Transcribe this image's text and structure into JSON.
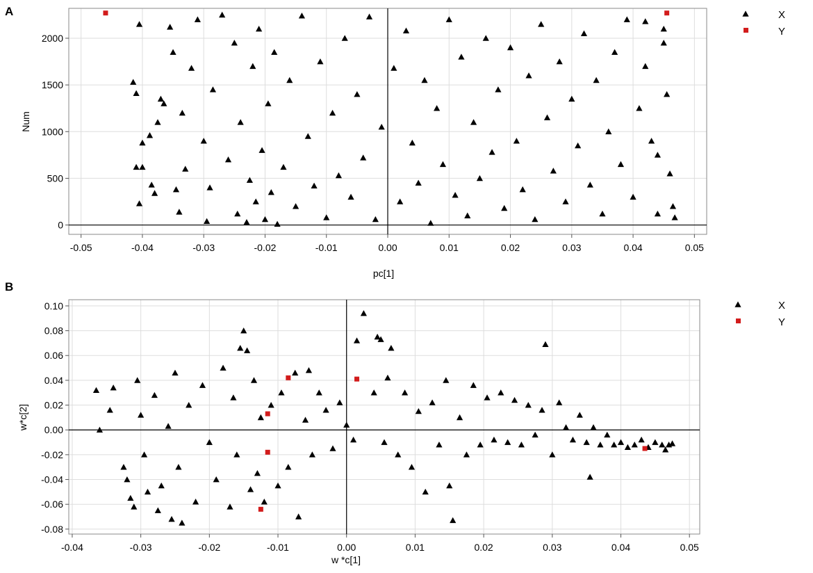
{
  "chart_data": [
    {
      "panel_letter": "A",
      "type": "scatter",
      "xlabel": "pc[1]",
      "ylabel": "Num",
      "xlim": [
        -0.052,
        0.052
      ],
      "ylim": [
        -100,
        2320
      ],
      "xticks": [
        -0.05,
        -0.04,
        -0.03,
        -0.02,
        -0.01,
        0.0,
        0.01,
        0.02,
        0.03,
        0.04,
        0.05
      ],
      "xtick_labels": [
        "-0.05",
        "-0.04",
        "-0.03",
        "-0.02",
        "-0.01",
        "0.00",
        "0.01",
        "0.02",
        "0.03",
        "0.04",
        "0.05"
      ],
      "yticks": [
        0,
        500,
        1000,
        1500,
        2000
      ],
      "ytick_labels": [
        "0",
        "500",
        "1000",
        "1500",
        "2000"
      ],
      "grid": true,
      "legend_position": "right",
      "series": [
        {
          "name": "X",
          "marker": "triangle",
          "color": "#000000",
          "points": [
            [
              -0.0415,
              1530
            ],
            [
              -0.041,
              1410
            ],
            [
              -0.0405,
              2150
            ],
            [
              -0.041,
              620
            ],
            [
              -0.04,
              620
            ],
            [
              -0.0405,
              230
            ],
            [
              -0.04,
              880
            ],
            [
              -0.0388,
              960
            ],
            [
              -0.0385,
              430
            ],
            [
              -0.038,
              340
            ],
            [
              -0.037,
              1350
            ],
            [
              -0.0365,
              1300
            ],
            [
              -0.0375,
              1100
            ],
            [
              -0.0355,
              2120
            ],
            [
              -0.035,
              1850
            ],
            [
              -0.0345,
              380
            ],
            [
              -0.034,
              140
            ],
            [
              -0.0335,
              1200
            ],
            [
              -0.033,
              600
            ],
            [
              -0.032,
              1680
            ],
            [
              -0.031,
              2200
            ],
            [
              -0.03,
              900
            ],
            [
              -0.0295,
              40
            ],
            [
              -0.029,
              400
            ],
            [
              -0.0285,
              1450
            ],
            [
              -0.027,
              2250
            ],
            [
              -0.026,
              700
            ],
            [
              -0.025,
              1950
            ],
            [
              -0.0245,
              120
            ],
            [
              -0.024,
              1100
            ],
            [
              -0.023,
              30
            ],
            [
              -0.0225,
              480
            ],
            [
              -0.022,
              1700
            ],
            [
              -0.0215,
              250
            ],
            [
              -0.021,
              2100
            ],
            [
              -0.0205,
              800
            ],
            [
              -0.02,
              60
            ],
            [
              -0.0195,
              1300
            ],
            [
              -0.019,
              350
            ],
            [
              -0.0185,
              1850
            ],
            [
              -0.018,
              10
            ],
            [
              -0.017,
              620
            ],
            [
              -0.016,
              1550
            ],
            [
              -0.015,
              200
            ],
            [
              -0.014,
              2240
            ],
            [
              -0.013,
              950
            ],
            [
              -0.012,
              420
            ],
            [
              -0.011,
              1750
            ],
            [
              -0.01,
              80
            ],
            [
              -0.009,
              1200
            ],
            [
              -0.008,
              530
            ],
            [
              -0.007,
              2000
            ],
            [
              -0.006,
              300
            ],
            [
              -0.005,
              1400
            ],
            [
              -0.004,
              720
            ],
            [
              -0.003,
              2230
            ],
            [
              -0.002,
              60
            ],
            [
              -0.001,
              1050
            ],
            [
              0.001,
              1680
            ],
            [
              0.002,
              250
            ],
            [
              0.003,
              2080
            ],
            [
              0.004,
              880
            ],
            [
              0.005,
              450
            ],
            [
              0.006,
              1550
            ],
            [
              0.007,
              20
            ],
            [
              0.008,
              1250
            ],
            [
              0.009,
              650
            ],
            [
              0.01,
              2200
            ],
            [
              0.011,
              320
            ],
            [
              0.012,
              1800
            ],
            [
              0.013,
              100
            ],
            [
              0.014,
              1100
            ],
            [
              0.015,
              500
            ],
            [
              0.016,
              2000
            ],
            [
              0.017,
              780
            ],
            [
              0.018,
              1450
            ],
            [
              0.019,
              180
            ],
            [
              0.02,
              1900
            ],
            [
              0.021,
              900
            ],
            [
              0.022,
              380
            ],
            [
              0.023,
              1600
            ],
            [
              0.024,
              60
            ],
            [
              0.025,
              2150
            ],
            [
              0.026,
              1150
            ],
            [
              0.027,
              580
            ],
            [
              0.028,
              1750
            ],
            [
              0.029,
              250
            ],
            [
              0.03,
              1350
            ],
            [
              0.031,
              850
            ],
            [
              0.032,
              2050
            ],
            [
              0.033,
              430
            ],
            [
              0.034,
              1550
            ],
            [
              0.035,
              120
            ],
            [
              0.036,
              1000
            ],
            [
              0.037,
              1850
            ],
            [
              0.038,
              650
            ],
            [
              0.039,
              2200
            ],
            [
              0.04,
              300
            ],
            [
              0.041,
              1250
            ],
            [
              0.042,
              1700
            ],
            [
              0.043,
              900
            ],
            [
              0.044,
              120
            ],
            [
              0.045,
              2100
            ],
            [
              0.0455,
              1400
            ],
            [
              0.046,
              550
            ],
            [
              0.0465,
              200
            ],
            [
              0.0468,
              80
            ],
            [
              0.045,
              1950
            ],
            [
              0.044,
              750
            ],
            [
              0.042,
              2180
            ]
          ]
        },
        {
          "name": "Y",
          "marker": "square",
          "color": "#d21c1c",
          "points": [
            [
              -0.046,
              2270
            ],
            [
              0.0455,
              2270
            ]
          ]
        }
      ]
    },
    {
      "panel_letter": "B",
      "type": "scatter",
      "xlabel": "w *c[1]",
      "ylabel": "w*c[2]",
      "xlim": [
        -0.0405,
        0.0515
      ],
      "ylim": [
        -0.084,
        0.105
      ],
      "xticks": [
        -0.04,
        -0.03,
        -0.02,
        -0.01,
        0.0,
        0.01,
        0.02,
        0.03,
        0.04,
        0.05
      ],
      "xtick_labels": [
        "-0.04",
        "-0.03",
        "-0.02",
        "-0.01",
        "0.00",
        "0.01",
        "0.02",
        "0.03",
        "0.04",
        "0.05"
      ],
      "yticks": [
        -0.08,
        -0.06,
        -0.04,
        -0.02,
        0.0,
        0.02,
        0.04,
        0.06,
        0.08,
        0.1
      ],
      "ytick_labels": [
        "-0.08",
        "-0.06",
        "-0.04",
        "-0.02",
        "0.00",
        "0.02",
        "0.04",
        "0.06",
        "0.08",
        "0.10"
      ],
      "grid": true,
      "legend_position": "right",
      "series": [
        {
          "name": "X",
          "marker": "triangle",
          "color": "#000000",
          "points": [
            [
              -0.0365,
              0.032
            ],
            [
              -0.036,
              0.0
            ],
            [
              -0.0345,
              0.016
            ],
            [
              -0.034,
              0.034
            ],
            [
              -0.0325,
              -0.03
            ],
            [
              -0.032,
              -0.04
            ],
            [
              -0.0315,
              -0.055
            ],
            [
              -0.031,
              -0.062
            ],
            [
              -0.0305,
              0.04
            ],
            [
              -0.03,
              0.012
            ],
            [
              -0.0295,
              -0.02
            ],
            [
              -0.029,
              -0.05
            ],
            [
              -0.028,
              0.028
            ],
            [
              -0.0275,
              -0.065
            ],
            [
              -0.027,
              -0.045
            ],
            [
              -0.026,
              0.003
            ],
            [
              -0.0255,
              -0.072
            ],
            [
              -0.025,
              0.046
            ],
            [
              -0.0245,
              -0.03
            ],
            [
              -0.024,
              -0.075
            ],
            [
              -0.023,
              0.02
            ],
            [
              -0.022,
              -0.058
            ],
            [
              -0.021,
              0.036
            ],
            [
              -0.02,
              -0.01
            ],
            [
              -0.019,
              -0.04
            ],
            [
              -0.018,
              0.05
            ],
            [
              -0.017,
              -0.062
            ],
            [
              -0.0165,
              0.026
            ],
            [
              -0.016,
              -0.02
            ],
            [
              -0.0155,
              0.066
            ],
            [
              -0.015,
              0.08
            ],
            [
              -0.0145,
              0.064
            ],
            [
              -0.014,
              -0.048
            ],
            [
              -0.0135,
              0.04
            ],
            [
              -0.013,
              -0.035
            ],
            [
              -0.0125,
              0.01
            ],
            [
              -0.012,
              -0.058
            ],
            [
              -0.011,
              0.02
            ],
            [
              -0.01,
              -0.045
            ],
            [
              -0.0095,
              0.03
            ],
            [
              -0.0085,
              -0.03
            ],
            [
              -0.0075,
              0.046
            ],
            [
              -0.007,
              -0.07
            ],
            [
              -0.006,
              0.008
            ],
            [
              -0.0055,
              0.048
            ],
            [
              -0.005,
              -0.02
            ],
            [
              -0.004,
              0.03
            ],
            [
              -0.003,
              0.016
            ],
            [
              -0.002,
              -0.015
            ],
            [
              -0.001,
              0.022
            ],
            [
              0.0,
              0.004
            ],
            [
              0.001,
              -0.008
            ],
            [
              0.0015,
              0.072
            ],
            [
              0.0025,
              0.094
            ],
            [
              0.004,
              0.03
            ],
            [
              0.0045,
              0.075
            ],
            [
              0.005,
              0.073
            ],
            [
              0.0055,
              -0.01
            ],
            [
              0.006,
              0.042
            ],
            [
              0.0065,
              0.066
            ],
            [
              0.0075,
              -0.02
            ],
            [
              0.0085,
              0.03
            ],
            [
              0.0095,
              -0.03
            ],
            [
              0.0105,
              0.015
            ],
            [
              0.0115,
              -0.05
            ],
            [
              0.0125,
              0.022
            ],
            [
              0.0135,
              -0.012
            ],
            [
              0.0145,
              0.04
            ],
            [
              0.015,
              -0.045
            ],
            [
              0.0155,
              -0.073
            ],
            [
              0.0165,
              0.01
            ],
            [
              0.0175,
              -0.02
            ],
            [
              0.0185,
              0.036
            ],
            [
              0.0195,
              -0.012
            ],
            [
              0.0205,
              0.026
            ],
            [
              0.0215,
              -0.008
            ],
            [
              0.0225,
              0.03
            ],
            [
              0.0235,
              -0.01
            ],
            [
              0.0245,
              0.024
            ],
            [
              0.0255,
              -0.012
            ],
            [
              0.0265,
              0.02
            ],
            [
              0.0275,
              -0.004
            ],
            [
              0.0285,
              0.016
            ],
            [
              0.029,
              0.069
            ],
            [
              0.03,
              -0.02
            ],
            [
              0.031,
              0.022
            ],
            [
              0.032,
              0.002
            ],
            [
              0.033,
              -0.008
            ],
            [
              0.034,
              0.012
            ],
            [
              0.035,
              -0.01
            ],
            [
              0.0355,
              -0.038
            ],
            [
              0.036,
              0.002
            ],
            [
              0.037,
              -0.012
            ],
            [
              0.038,
              -0.004
            ],
            [
              0.039,
              -0.012
            ],
            [
              0.04,
              -0.01
            ],
            [
              0.041,
              -0.014
            ],
            [
              0.042,
              -0.012
            ],
            [
              0.043,
              -0.008
            ],
            [
              0.044,
              -0.014
            ],
            [
              0.045,
              -0.01
            ],
            [
              0.046,
              -0.012
            ],
            [
              0.047,
              -0.012
            ],
            [
              0.0475,
              -0.011
            ],
            [
              0.0465,
              -0.016
            ]
          ]
        },
        {
          "name": "Y",
          "marker": "square",
          "color": "#d21c1c",
          "points": [
            [
              -0.0085,
              0.042
            ],
            [
              0.0015,
              0.041
            ],
            [
              -0.0115,
              0.013
            ],
            [
              -0.0115,
              -0.018
            ],
            [
              -0.0125,
              -0.064
            ],
            [
              0.0435,
              -0.015
            ]
          ]
        }
      ]
    }
  ]
}
